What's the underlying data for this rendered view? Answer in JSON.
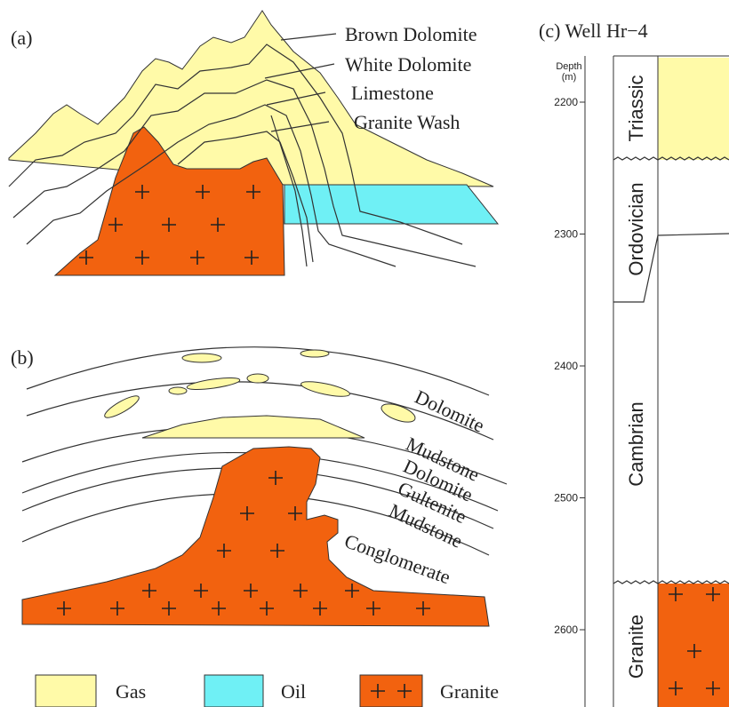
{
  "panel_a": {
    "label": "(a)",
    "layers": [
      "Brown Dolomite",
      "White Dolomite",
      "Limestone",
      "Granite Wash"
    ]
  },
  "panel_b": {
    "label": "(b)",
    "layers": [
      "Dolomite",
      "Mudstone",
      "Dolomite",
      "Gultenite",
      "Mudstone",
      "Conglomerate"
    ]
  },
  "panel_c": {
    "label": "(c) Well Hr−4",
    "depth_label": "Depth",
    "depth_unit": "(m)",
    "depth_ticks": [
      2200,
      2300,
      2400,
      2500,
      2600
    ],
    "formations": [
      "Triassic",
      "Ordovician",
      "Cambrian",
      "Granite"
    ]
  },
  "legend": [
    "Gas",
    "Oil",
    "Granite"
  ]
}
